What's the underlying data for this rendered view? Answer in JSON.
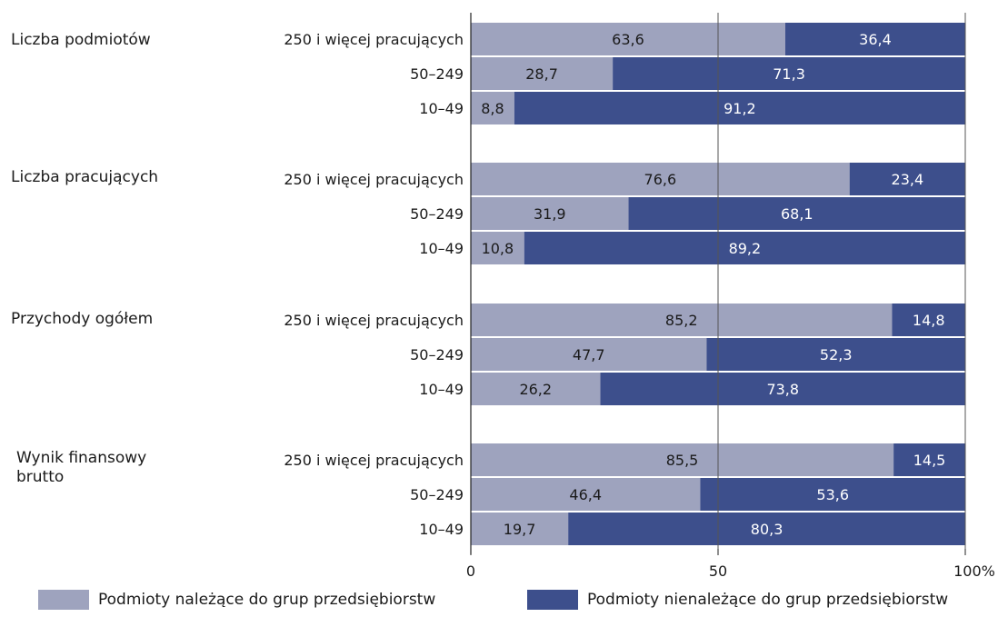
{
  "chart_data": {
    "type": "bar",
    "stacked": true,
    "orientation": "horizontal",
    "groups": [
      {
        "title": "Liczba podmiotów",
        "rows": [
          {
            "label": "250 i więcej pracujących",
            "values": [
              63.6,
              36.4
            ],
            "labels": [
              "63,6",
              "36,4"
            ]
          },
          {
            "label": "50–249",
            "values": [
              28.7,
              71.3
            ],
            "labels": [
              "28,7",
              "71,3"
            ]
          },
          {
            "label": "10–49",
            "values": [
              8.8,
              91.2
            ],
            "labels": [
              "8,8",
              "91,2"
            ]
          }
        ]
      },
      {
        "title": "Liczba pracujących",
        "rows": [
          {
            "label": "250 i więcej pracujących",
            "values": [
              76.6,
              23.4
            ],
            "labels": [
              "76,6",
              "23,4"
            ]
          },
          {
            "label": "50–249",
            "values": [
              31.9,
              68.1
            ],
            "labels": [
              "31,9",
              "68,1"
            ]
          },
          {
            "label": "10–49",
            "values": [
              10.8,
              89.2
            ],
            "labels": [
              "10,8",
              "89,2"
            ]
          }
        ]
      },
      {
        "title": "Przychody ogółem",
        "rows": [
          {
            "label": "250 i więcej pracujących",
            "values": [
              85.2,
              14.8
            ],
            "labels": [
              "85,2",
              "14,8"
            ]
          },
          {
            "label": "50–249",
            "values": [
              47.7,
              52.3
            ],
            "labels": [
              "47,7",
              "52,3"
            ]
          },
          {
            "label": "10–49",
            "values": [
              26.2,
              73.8
            ],
            "labels": [
              "26,2",
              "73,8"
            ]
          }
        ]
      },
      {
        "title": "Wynik finansowy brutto",
        "rows": [
          {
            "label": "250 i więcej pracujących",
            "values": [
              85.5,
              14.5
            ],
            "labels": [
              "85,5",
              "14,5"
            ]
          },
          {
            "label": "50–249",
            "values": [
              46.4,
              53.6
            ],
            "labels": [
              "46,4",
              "53,6"
            ]
          },
          {
            "label": "10–49",
            "values": [
              19.7,
              80.3
            ],
            "labels": [
              "19,7",
              "80,3"
            ]
          }
        ]
      }
    ],
    "series": [
      {
        "name": "Podmioty należące do grup przedsiębiorstw",
        "color": "#9ea3be"
      },
      {
        "name": "Podmioty nienależące do grup przedsiębiorstw",
        "color": "#3d4f8c"
      }
    ],
    "xlim": [
      0,
      100
    ],
    "x_ticks": [
      0,
      50,
      100
    ],
    "x_tick_labels": [
      "0",
      "50",
      "100%"
    ],
    "grid": "vertical at 50 and 100",
    "legend_position": "bottom"
  }
}
